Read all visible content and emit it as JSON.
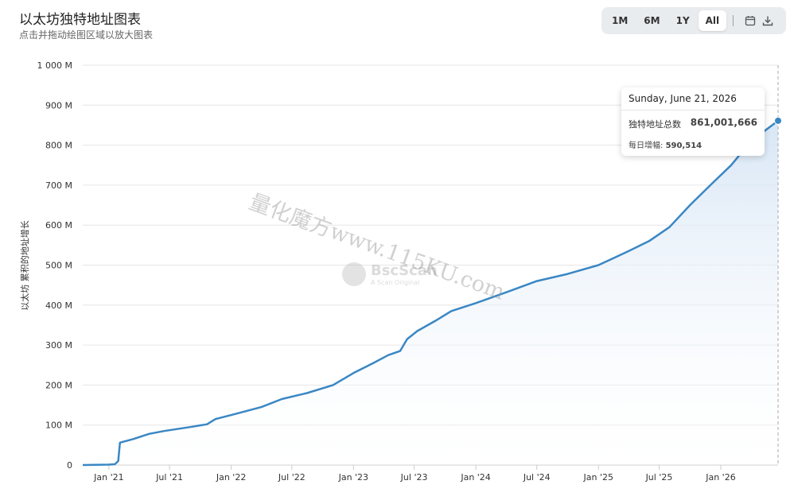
{
  "header": {
    "title": "以太坊独特地址图表",
    "subtitle": "点击并拖动绘图区域以放大图表"
  },
  "range_selector": {
    "buttons": [
      "1M",
      "6M",
      "1Y",
      "All"
    ],
    "active": "All",
    "icons": [
      "calendar-icon",
      "download-icon"
    ]
  },
  "tooltip": {
    "date": "Sunday, June 21, 2026",
    "series_label": "独特地址总数",
    "value": "861,001,666",
    "daily_label": "每日增幅:",
    "daily_value": "590,514"
  },
  "watermark": {
    "brand": "BscScan",
    "sub": "A Scan Original",
    "overlay_text": "量化魔方www.115KU.com"
  },
  "colors": {
    "line": "#3a87c4",
    "area_top": "#dbe8f6",
    "grid": "#e6e6e6"
  },
  "chart_data": {
    "type": "area",
    "title": "以太坊独特地址图表",
    "ylabel": "以太坊 累积的地址增长",
    "xlabel": "",
    "ylim": [
      0,
      1000000000
    ],
    "y_ticks": [
      {
        "v": 0,
        "label": "0"
      },
      {
        "v": 100000000,
        "label": "100 M"
      },
      {
        "v": 200000000,
        "label": "200 M"
      },
      {
        "v": 300000000,
        "label": "300 M"
      },
      {
        "v": 400000000,
        "label": "400 M"
      },
      {
        "v": 500000000,
        "label": "500 M"
      },
      {
        "v": 600000000,
        "label": "600 M"
      },
      {
        "v": 700000000,
        "label": "700 M"
      },
      {
        "v": 800000000,
        "label": "800 M"
      },
      {
        "v": 900000000,
        "label": "900 M"
      },
      {
        "v": 1000000000,
        "label": "1 000 M"
      }
    ],
    "xlim": [
      "2020-10-15",
      "2026-06-21"
    ],
    "x_ticks": [
      {
        "date": "2021-01-01",
        "label": "Jan '21"
      },
      {
        "date": "2021-07-01",
        "label": "Jul '21"
      },
      {
        "date": "2022-01-01",
        "label": "Jan '22"
      },
      {
        "date": "2022-07-01",
        "label": "Jul '22"
      },
      {
        "date": "2023-01-01",
        "label": "Jan '23"
      },
      {
        "date": "2023-07-01",
        "label": "Jul '23"
      },
      {
        "date": "2024-01-01",
        "label": "Jan '24"
      },
      {
        "date": "2024-07-01",
        "label": "Jul '24"
      },
      {
        "date": "2025-01-01",
        "label": "Jan '25"
      },
      {
        "date": "2025-07-01",
        "label": "Jul '25"
      },
      {
        "date": "2026-01-01",
        "label": "Jan '26"
      }
    ],
    "grid": true,
    "legend": "none",
    "series": [
      {
        "points": [
          [
            "2020-10-15",
            0
          ],
          [
            "2020-12-31",
            1000000
          ],
          [
            "2021-01-19",
            2000000
          ],
          [
            "2021-01-29",
            10000000
          ],
          [
            "2021-02-03",
            56000000
          ],
          [
            "2021-03-15",
            65000000
          ],
          [
            "2021-05-01",
            78000000
          ],
          [
            "2021-06-15",
            85000000
          ],
          [
            "2021-09-01",
            95000000
          ],
          [
            "2021-10-21",
            102000000
          ],
          [
            "2021-11-15",
            115000000
          ],
          [
            "2022-01-15",
            128000000
          ],
          [
            "2022-04-01",
            145000000
          ],
          [
            "2022-06-01",
            165000000
          ],
          [
            "2022-08-15",
            180000000
          ],
          [
            "2022-11-01",
            200000000
          ],
          [
            "2023-01-01",
            230000000
          ],
          [
            "2023-03-01",
            255000000
          ],
          [
            "2023-04-15",
            275000000
          ],
          [
            "2023-05-20",
            285000000
          ],
          [
            "2023-06-10",
            315000000
          ],
          [
            "2023-07-10",
            335000000
          ],
          [
            "2023-09-01",
            360000000
          ],
          [
            "2023-10-20",
            385000000
          ],
          [
            "2024-01-01",
            405000000
          ],
          [
            "2024-04-01",
            432000000
          ],
          [
            "2024-07-01",
            460000000
          ],
          [
            "2024-10-01",
            478000000
          ],
          [
            "2025-01-01",
            500000000
          ],
          [
            "2025-04-01",
            535000000
          ],
          [
            "2025-06-01",
            560000000
          ],
          [
            "2025-08-01",
            595000000
          ],
          [
            "2025-10-01",
            650000000
          ],
          [
            "2025-12-01",
            700000000
          ],
          [
            "2026-02-01",
            750000000
          ],
          [
            "2026-04-01",
            810000000
          ],
          [
            "2026-06-21",
            861001666
          ]
        ]
      }
    ]
  }
}
